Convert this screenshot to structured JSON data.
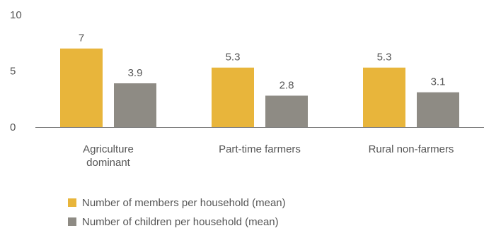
{
  "chart_data": {
    "type": "bar",
    "categories": [
      [
        "Agriculture",
        "dominant"
      ],
      [
        "Part-time farmers"
      ],
      [
        "Rural non-farmers"
      ]
    ],
    "series": [
      {
        "name": "Number of members per household (mean)",
        "values": [
          7,
          5.3,
          5.3
        ],
        "labels": [
          "7",
          "5.3",
          "5.3"
        ],
        "color": "#E8B53B"
      },
      {
        "name": "Number of children per household  (mean)",
        "values": [
          3.9,
          2.8,
          3.1
        ],
        "labels": [
          "3.9",
          "2.8",
          "3.1"
        ],
        "color": "#8E8B84"
      }
    ],
    "ylim": [
      0,
      10
    ],
    "yticks": [
      0,
      5,
      10
    ],
    "ytick_labels": [
      "0",
      "5",
      "10"
    ],
    "grid": false,
    "legend_position": "bottom-left"
  }
}
